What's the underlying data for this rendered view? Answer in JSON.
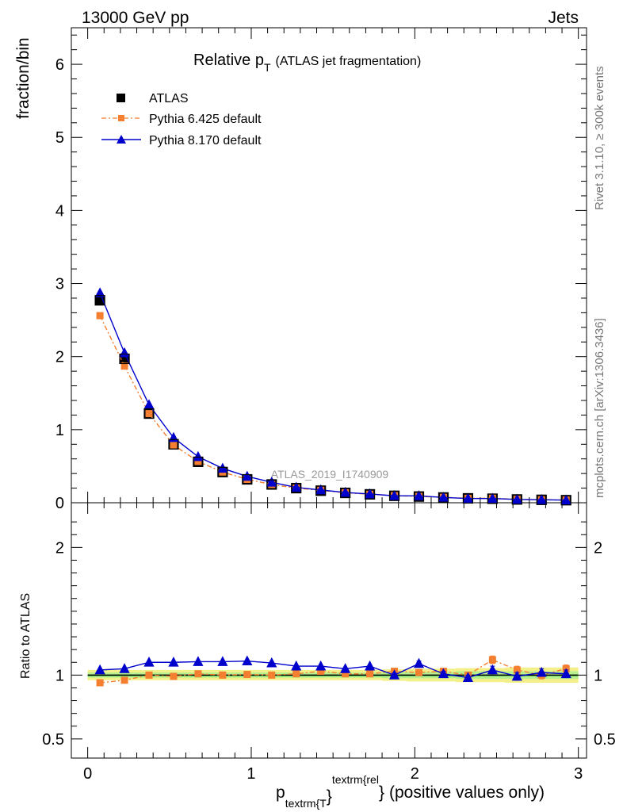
{
  "header": {
    "left": "13000 GeV pp",
    "right": "Jets"
  },
  "side_labels": {
    "rivet": "Rivet 3.1.10, ≥ 300k events",
    "source": "mcplots.cern.ch [arXiv:1306.3436]"
  },
  "chart_data": [
    {
      "type": "line",
      "panel": "main",
      "title_main": "Relative p",
      "title_sub": "T",
      "title_rest": "(ATLAS jet fragmentation)",
      "ylabel": "fraction/bin",
      "watermark": "ATLAS_2019_I1740909",
      "xlim": [
        -0.1,
        3.05
      ],
      "ylim": [
        0,
        6.5
      ],
      "yticks": [
        0,
        1,
        2,
        3,
        4,
        5,
        6
      ],
      "ytick_labels": [
        "0",
        "1",
        "2",
        "3",
        "4",
        "5",
        "6"
      ],
      "x": [
        0.075,
        0.225,
        0.375,
        0.525,
        0.675,
        0.825,
        0.975,
        1.125,
        1.275,
        1.425,
        1.575,
        1.725,
        1.875,
        2.025,
        2.175,
        2.325,
        2.475,
        2.625,
        2.775,
        2.925
      ],
      "series": [
        {
          "name": "ATLAS",
          "color": "#000000",
          "marker": "square",
          "values": [
            2.77,
            1.97,
            1.22,
            0.8,
            0.56,
            0.42,
            0.32,
            0.25,
            0.2,
            0.165,
            0.135,
            0.115,
            0.095,
            0.085,
            0.072,
            0.06,
            0.055,
            0.045,
            0.04,
            0.035
          ]
        },
        {
          "name": "Pythia 6.425 default",
          "color": "#f47f30",
          "marker": "square",
          "dashed": true,
          "values": [
            2.56,
            1.87,
            1.22,
            0.79,
            0.565,
            0.42,
            0.32,
            0.25,
            0.2,
            0.17,
            0.137,
            0.116,
            0.097,
            0.087,
            0.074,
            0.061,
            0.062,
            0.047,
            0.041,
            0.037
          ]
        },
        {
          "name": "Pythia 8.170 default",
          "color": "#0000cc",
          "marker": "triangle",
          "values": [
            2.87,
            2.05,
            1.34,
            0.89,
            0.63,
            0.47,
            0.36,
            0.28,
            0.21,
            0.175,
            0.14,
            0.12,
            0.095,
            0.094,
            0.073,
            0.058,
            0.058,
            0.045,
            0.041,
            0.036
          ]
        }
      ]
    },
    {
      "type": "line",
      "panel": "ratio",
      "ylabel": "Ratio to ATLAS",
      "xlabel_main": "p",
      "xlabel_sub": "textrm{T",
      "xlabel_sup": "textrm{rel",
      "xlabel_brace1": "}",
      "xlabel_brace2": "}",
      "xlabel_rest": "(positive values only)",
      "xlim": [
        -0.1,
        3.05
      ],
      "ylim": [
        0.35,
        2.35
      ],
      "xticks": [
        0,
        1,
        2,
        3
      ],
      "xtick_labels": [
        "0",
        "1",
        "2",
        "3"
      ],
      "yticks": [
        0.5,
        1,
        2
      ],
      "ytick_labels": [
        "0.5",
        "1",
        "2"
      ],
      "x": [
        0.075,
        0.225,
        0.375,
        0.525,
        0.675,
        0.825,
        0.975,
        1.125,
        1.275,
        1.425,
        1.575,
        1.725,
        1.875,
        2.025,
        2.175,
        2.325,
        2.475,
        2.625,
        2.775,
        2.925
      ],
      "band_inner": [
        0.02,
        0.02,
        0.02,
        0.02,
        0.02,
        0.02,
        0.02,
        0.02,
        0.02,
        0.02,
        0.02,
        0.02,
        0.025,
        0.025,
        0.025,
        0.03,
        0.03,
        0.03,
        0.03,
        0.03
      ],
      "band_outer": [
        0.04,
        0.04,
        0.04,
        0.04,
        0.04,
        0.04,
        0.04,
        0.04,
        0.04,
        0.04,
        0.04,
        0.04,
        0.045,
        0.05,
        0.05,
        0.055,
        0.055,
        0.06,
        0.06,
        0.06
      ],
      "series": [
        {
          "name": "Pythia 6.425 default",
          "color": "#f47f30",
          "marker": "square",
          "dashed": true,
          "values": [
            0.94,
            0.96,
            1.0,
            0.99,
            1.01,
            1.0,
            1.005,
            1.0,
            1.01,
            1.03,
            1.01,
            1.01,
            1.03,
            1.02,
            1.03,
            1.0,
            1.12,
            1.04,
            1.0,
            1.05
          ],
          "errors": [
            0,
            0,
            0,
            0,
            0,
            0,
            0,
            0,
            0,
            0,
            0,
            0,
            0.02,
            0.02,
            0.02,
            0.02,
            0.03,
            0.03,
            0.03,
            0.03
          ]
        },
        {
          "name": "Pythia 8.170 default",
          "color": "#0000cc",
          "marker": "triangle",
          "values": [
            1.04,
            1.05,
            1.1,
            1.1,
            1.105,
            1.105,
            1.11,
            1.095,
            1.07,
            1.07,
            1.05,
            1.07,
            1.0,
            1.09,
            1.01,
            0.98,
            1.04,
            0.99,
            1.02,
            1.01
          ],
          "errors": [
            0,
            0,
            0,
            0,
            0,
            0,
            0,
            0,
            0,
            0,
            0,
            0,
            0.015,
            0.02,
            0.02,
            0.02,
            0.03,
            0.03,
            0.03,
            0.03
          ]
        }
      ]
    }
  ]
}
